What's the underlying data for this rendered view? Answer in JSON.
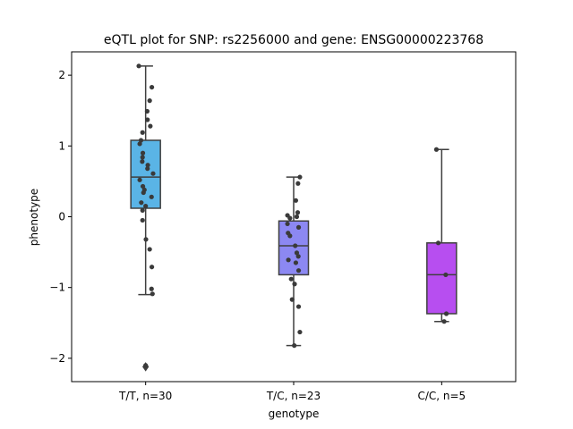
{
  "chart_data": {
    "type": "box",
    "title": "eQTL plot for SNP: rs2256000 and gene: ENSG00000223768",
    "xlabel": "genotype",
    "ylabel": "phenotype",
    "ylim": [
      -2.33,
      2.33
    ],
    "yticks": [
      -2,
      -1,
      0,
      1,
      2
    ],
    "ytick_labels": [
      "−2",
      "−1",
      "0",
      "1",
      "2"
    ],
    "categories": [
      "T/T, n=30",
      "T/C, n=23",
      "C/C, n=5"
    ],
    "colors": [
      "#5ab4e6",
      "#8c88f2",
      "#b74ef0"
    ],
    "boxes": [
      {
        "q1": 0.12,
        "median": 0.56,
        "q3": 1.08,
        "whisker_low": -1.1,
        "whisker_high": 2.13,
        "outliers": [
          -2.12
        ]
      },
      {
        "q1": -0.82,
        "median": -0.41,
        "q3": -0.06,
        "whisker_low": -1.82,
        "whisker_high": 0.56,
        "outliers": []
      },
      {
        "q1": -1.37,
        "median": -0.82,
        "q3": -0.37,
        "whisker_low": -1.48,
        "whisker_high": 0.95,
        "outliers": []
      }
    ],
    "points": [
      [
        {
          "x": -0.22,
          "y": 2.13
        },
        {
          "x": 0.2,
          "y": 1.83
        },
        {
          "x": 0.13,
          "y": 1.64
        },
        {
          "x": 0.05,
          "y": 1.49
        },
        {
          "x": 0.06,
          "y": 1.37
        },
        {
          "x": 0.15,
          "y": 1.28
        },
        {
          "x": -0.1,
          "y": 1.19
        },
        {
          "x": -0.15,
          "y": 1.08
        },
        {
          "x": -0.19,
          "y": 1.03
        },
        {
          "x": -0.09,
          "y": 0.9
        },
        {
          "x": -0.1,
          "y": 0.84
        },
        {
          "x": -0.11,
          "y": 0.78
        },
        {
          "x": 0.07,
          "y": 0.73
        },
        {
          "x": 0.06,
          "y": 0.68
        },
        {
          "x": 0.24,
          "y": 0.61
        },
        {
          "x": -0.19,
          "y": 0.52
        },
        {
          "x": -0.09,
          "y": 0.43
        },
        {
          "x": -0.04,
          "y": 0.38
        },
        {
          "x": -0.07,
          "y": 0.34
        },
        {
          "x": 0.19,
          "y": 0.28
        },
        {
          "x": -0.14,
          "y": 0.2
        },
        {
          "x": 0.0,
          "y": 0.15
        },
        {
          "x": -0.1,
          "y": 0.09
        },
        {
          "x": -0.1,
          "y": -0.05
        },
        {
          "x": 0.01,
          "y": -0.32
        },
        {
          "x": 0.13,
          "y": -0.46
        },
        {
          "x": 0.2,
          "y": -0.71
        },
        {
          "x": 0.19,
          "y": -1.02
        },
        {
          "x": 0.22,
          "y": -1.09
        },
        {
          "x": 0.0,
          "y": -2.1
        }
      ],
      [
        {
          "x": 0.2,
          "y": 0.56
        },
        {
          "x": 0.14,
          "y": 0.47
        },
        {
          "x": 0.07,
          "y": 0.23
        },
        {
          "x": 0.13,
          "y": 0.06
        },
        {
          "x": -0.2,
          "y": 0.02
        },
        {
          "x": -0.12,
          "y": -0.02
        },
        {
          "x": -0.2,
          "y": -0.1
        },
        {
          "x": 0.16,
          "y": -0.15
        },
        {
          "x": -0.18,
          "y": -0.23
        },
        {
          "x": -0.12,
          "y": -0.27
        },
        {
          "x": 0.05,
          "y": -0.41
        },
        {
          "x": 0.1,
          "y": -0.51
        },
        {
          "x": 0.15,
          "y": -0.56
        },
        {
          "x": -0.17,
          "y": -0.61
        },
        {
          "x": 0.07,
          "y": -0.65
        },
        {
          "x": 0.16,
          "y": -0.76
        },
        {
          "x": -0.08,
          "y": -0.88
        },
        {
          "x": 0.03,
          "y": -0.95
        },
        {
          "x": -0.05,
          "y": -1.17
        },
        {
          "x": 0.16,
          "y": -1.27
        },
        {
          "x": 0.2,
          "y": -1.63
        },
        {
          "x": 0.02,
          "y": -1.82
        },
        {
          "x": 0.1,
          "y": 0.0
        }
      ],
      [
        {
          "x": -0.17,
          "y": 0.95
        },
        {
          "x": -0.11,
          "y": -0.37
        },
        {
          "x": 0.13,
          "y": -0.82
        },
        {
          "x": 0.15,
          "y": -1.37
        },
        {
          "x": 0.08,
          "y": -1.48
        }
      ]
    ]
  }
}
